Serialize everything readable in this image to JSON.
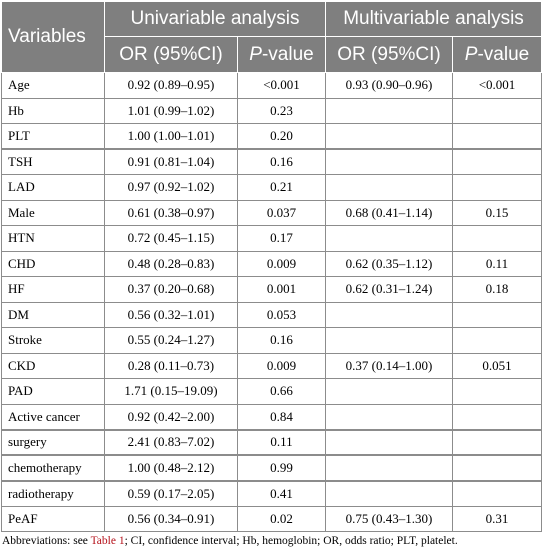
{
  "header": {
    "variables": "Variables",
    "univariable": "Univariable analysis",
    "multivariable": "Multivariable analysis",
    "or_ci_uni": "OR (95%CI)",
    "p_prefix_uni": "P",
    "p_suffix_uni": "-value",
    "or_ci_multi": "OR (95%CI)",
    "p_prefix_multi": "P",
    "p_suffix_multi": "-value"
  },
  "rows": [
    {
      "var": "Age",
      "uni_or": "0.92 (0.89–0.95)",
      "uni_p": "<0.001",
      "multi_or": "0.93 (0.90–0.96)",
      "multi_p": "<0.001"
    },
    {
      "var": "Hb",
      "uni_or": "1.01 (0.99–1.02)",
      "uni_p": "0.23",
      "multi_or": "",
      "multi_p": ""
    },
    {
      "var": "PLT",
      "uni_or": "1.00 (1.00–1.01)",
      "uni_p": "0.20",
      "multi_or": "",
      "multi_p": ""
    },
    {
      "var": "TSH",
      "uni_or": "0.91 (0.81–1.04)",
      "uni_p": "0.16",
      "multi_or": "",
      "multi_p": ""
    },
    {
      "var": "LAD",
      "uni_or": "0.97 (0.92–1.02)",
      "uni_p": "0.21",
      "multi_or": "",
      "multi_p": ""
    },
    {
      "var": "Male",
      "uni_or": "0.61 (0.38–0.97)",
      "uni_p": "0.037",
      "multi_or": "0.68 (0.41–1.14)",
      "multi_p": "0.15"
    },
    {
      "var": "HTN",
      "uni_or": "0.72 (0.45–1.15)",
      "uni_p": "0.17",
      "multi_or": "",
      "multi_p": ""
    },
    {
      "var": "CHD",
      "uni_or": "0.48 (0.28–0.83)",
      "uni_p": "0.009",
      "multi_or": "0.62 (0.35–1.12)",
      "multi_p": "0.11"
    },
    {
      "var": "HF",
      "uni_or": "0.37 (0.20–0.68)",
      "uni_p": "0.001",
      "multi_or": "0.62 (0.31–1.24)",
      "multi_p": "0.18"
    },
    {
      "var": "DM",
      "uni_or": "0.56 (0.32–1.01)",
      "uni_p": "0.053",
      "multi_or": "",
      "multi_p": ""
    },
    {
      "var": "Stroke",
      "uni_or": "0.55 (0.24–1.27)",
      "uni_p": "0.16",
      "multi_or": "",
      "multi_p": ""
    },
    {
      "var": "CKD",
      "uni_or": "0.28 (0.11–0.73)",
      "uni_p": "0.009",
      "multi_or": "0.37 (0.14–1.00)",
      "multi_p": "0.051"
    },
    {
      "var": "PAD",
      "uni_or": "1.71 (0.15–19.09)",
      "uni_p": "0.66",
      "multi_or": "",
      "multi_p": ""
    },
    {
      "var": "Active cancer",
      "uni_or": "0.92 (0.42–2.00)",
      "uni_p": "0.84",
      "multi_or": "",
      "multi_p": ""
    },
    {
      "var": "surgery",
      "uni_or": "2.41 (0.83–7.02)",
      "uni_p": "0.11",
      "multi_or": "",
      "multi_p": ""
    },
    {
      "var": "chemotherapy",
      "uni_or": "1.00 (0.48–2.12)",
      "uni_p": "0.99",
      "multi_or": "",
      "multi_p": ""
    },
    {
      "var": "radiotherapy",
      "uni_or": "0.59 (0.17–2.05)",
      "uni_p": "0.41",
      "multi_or": "",
      "multi_p": ""
    },
    {
      "var": "PeAF",
      "uni_or": "0.56 (0.34–0.91)",
      "uni_p": "0.02",
      "multi_or": "0.75 (0.43–1.30)",
      "multi_p": "0.31"
    }
  ],
  "footnote": {
    "prefix": "Abbreviations: see ",
    "link": "Table 1",
    "suffix": "; CI, confidence interval; Hb, hemoglobin; OR, odds ratio; PLT, platelet."
  },
  "colors": {
    "header_bg": "#7f7f7f",
    "header_text": "#ffffff",
    "grid": "#8c8c8c",
    "link": "#b5121b"
  }
}
